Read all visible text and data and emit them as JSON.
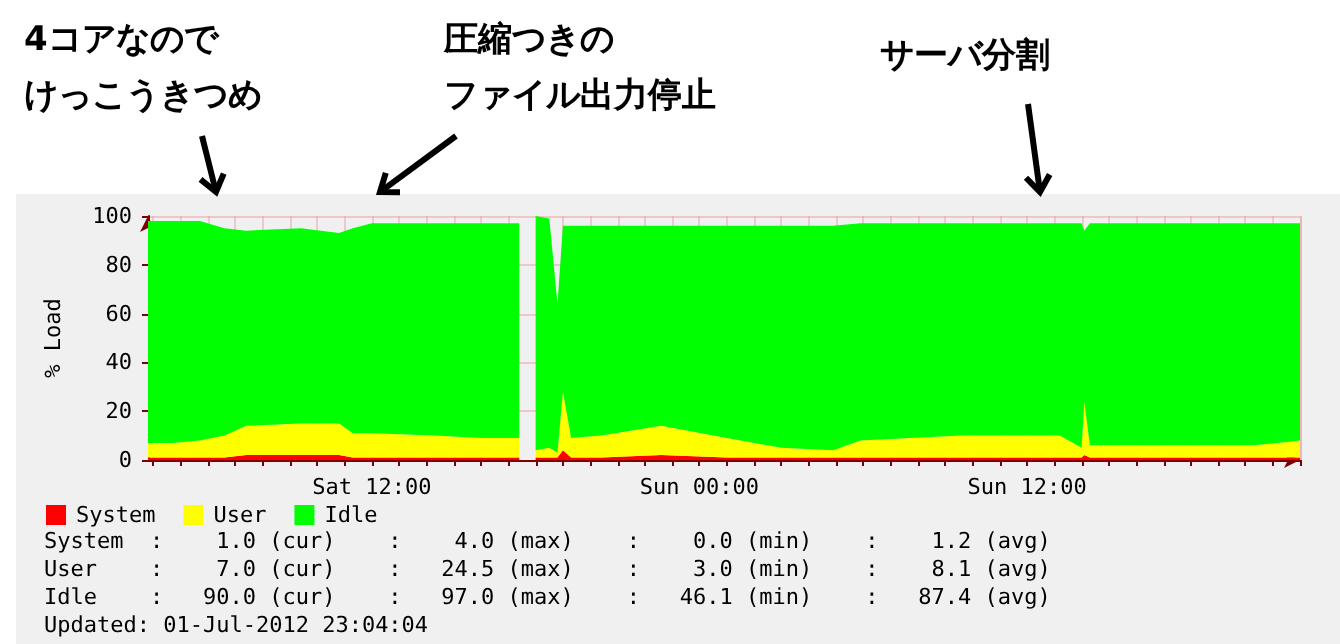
{
  "chart_data": {
    "type": "area",
    "stacked": true,
    "ylabel": "% Load",
    "x": [
      "2012-06-30T03:48",
      "2012-06-30T04:42",
      "2012-06-30T05:42",
      "2012-06-30T06:36",
      "2012-06-30T07:24",
      "2012-06-30T09:24",
      "2012-06-30T10:48",
      "2012-06-30T11:18",
      "2012-06-30T12:00",
      "2012-06-30T14:18",
      "2012-06-30T16:00",
      "2012-06-30T17:24",
      "2012-06-30T17:42",
      "2012-06-30T18:00",
      "2012-06-30T18:30",
      "2012-06-30T18:48",
      "2012-06-30T19:00",
      "2012-06-30T19:18",
      "2012-06-30T20:24",
      "2012-06-30T22:36",
      "2012-07-01T01:00",
      "2012-07-01T03:00",
      "2012-07-01T04:54",
      "2012-07-01T05:54",
      "2012-07-01T09:36",
      "2012-07-01T13:12",
      "2012-07-01T14:00",
      "2012-07-01T14:06",
      "2012-07-01T14:18",
      "2012-07-01T20:18",
      "2012-07-01T22:00"
    ],
    "series": [
      {
        "name": "System",
        "color": "#ff0000",
        "values": [
          1,
          1,
          1,
          1,
          2,
          2,
          2,
          1,
          1,
          1,
          1,
          1,
          null,
          1,
          1,
          1,
          4,
          1,
          1,
          2,
          1,
          1,
          1,
          1,
          1,
          1,
          1,
          2,
          1,
          1,
          1
        ]
      },
      {
        "name": "User",
        "color": "#ffff00",
        "values": [
          6,
          6,
          7,
          9,
          12,
          13,
          13,
          10,
          10,
          9,
          8,
          8,
          null,
          3,
          4,
          2,
          24,
          8,
          9,
          12,
          8,
          4,
          3,
          7,
          9,
          9,
          4,
          22,
          5,
          5,
          7
        ]
      },
      {
        "name": "Idle",
        "color": "#00ff00",
        "values": [
          91,
          91,
          90,
          85,
          80,
          80,
          78,
          84,
          86,
          87,
          88,
          88,
          null,
          96,
          94,
          61,
          68,
          87,
          86,
          82,
          87,
          91,
          92,
          89,
          87,
          87,
          92,
          70,
          91,
          91,
          89
        ]
      }
    ],
    "xlim": [
      "2012-06-30T03:48",
      "2012-07-01T22:00"
    ],
    "xticks": [
      {
        "value": "2012-06-30T04:00",
        "label": null
      },
      {
        "value": "2012-06-30T06:00",
        "label": null
      },
      {
        "value": "2012-06-30T08:00",
        "label": null
      },
      {
        "value": "2012-06-30T10:00",
        "label": null
      },
      {
        "value": "2012-06-30T12:00",
        "label": "Sat 12:00"
      },
      {
        "value": "2012-06-30T14:00",
        "label": null
      },
      {
        "value": "2012-06-30T16:00",
        "label": null
      },
      {
        "value": "2012-06-30T18:00",
        "label": null
      },
      {
        "value": "2012-06-30T20:00",
        "label": null
      },
      {
        "value": "2012-06-30T22:00",
        "label": null
      },
      {
        "value": "2012-07-01T00:00",
        "label": "Sun 00:00"
      },
      {
        "value": "2012-07-01T02:00",
        "label": null
      },
      {
        "value": "2012-07-01T04:00",
        "label": null
      },
      {
        "value": "2012-07-01T06:00",
        "label": null
      },
      {
        "value": "2012-07-01T08:00",
        "label": null
      },
      {
        "value": "2012-07-01T10:00",
        "label": null
      },
      {
        "value": "2012-07-01T12:00",
        "label": "Sun 12:00"
      },
      {
        "value": "2012-07-01T14:00",
        "label": null
      },
      {
        "value": "2012-07-01T16:00",
        "label": null
      },
      {
        "value": "2012-07-01T18:00",
        "label": null
      },
      {
        "value": "2012-07-01T20:00",
        "label": null
      }
    ],
    "ylim": [
      0,
      100
    ],
    "yticks": [
      0,
      20,
      40,
      60,
      80,
      100
    ],
    "grid": true,
    "legend": "bottom left",
    "marker": "none",
    "annotations": [
      "4コアなのでけっこうきつめ",
      "圧縮つきのファイル出力停止",
      "サーバ分割",
      "System  :    1.0 (cur)    :    4.0 (max)    :    0.0 (min)    :    1.2 (avg)",
      "User    :    7.0 (cur)    :   24.5 (max)    :    3.0 (min)    :    8.1 (avg)",
      "Idle    :   90.0 (cur)    :   97.0 (max)    :   46.1 (min)    :   87.4 (avg)",
      "Updated: 01-Jul-2012 23:04:04"
    ]
  }
}
